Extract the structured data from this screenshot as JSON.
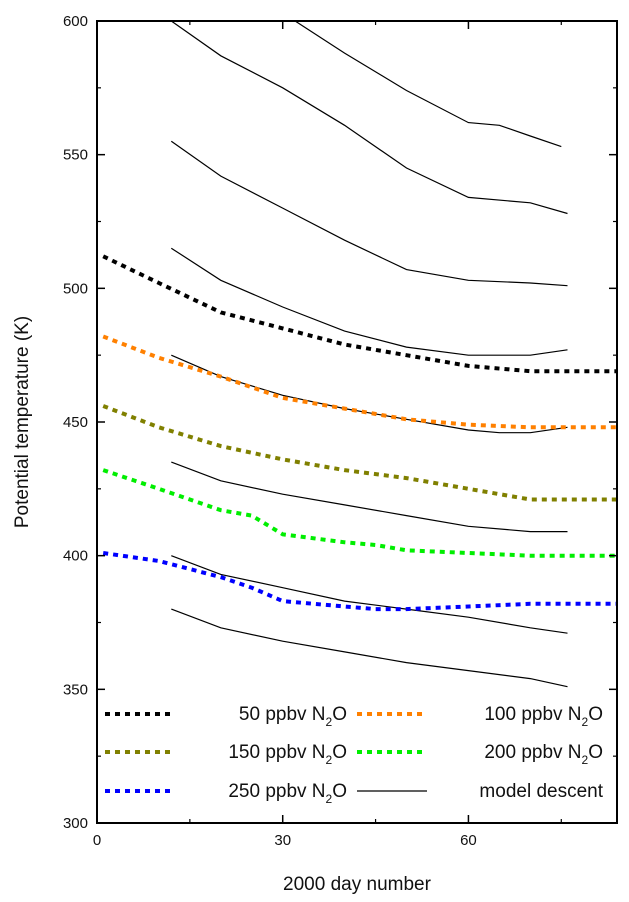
{
  "chart_data": {
    "type": "line",
    "title": "",
    "xlabel": "2000 day number",
    "ylabel": "Potential temperature (K)",
    "xlim": [
      0,
      84
    ],
    "ylim": [
      300,
      600
    ],
    "xticks": [
      0,
      30,
      60
    ],
    "yticks": [
      300,
      350,
      400,
      450,
      500,
      550,
      600
    ],
    "grid": false,
    "legend_position": "bottom",
    "series": [
      {
        "name": "50 ppbv N2O",
        "label_text": "50 ppbv N",
        "label_sub": "2",
        "label_tail": "O",
        "style": "dotted",
        "color": "#000000",
        "x": [
          1,
          10,
          20,
          30,
          40,
          50,
          60,
          70,
          84
        ],
        "y": [
          512,
          502,
          491,
          485,
          479,
          475,
          471,
          469,
          469
        ]
      },
      {
        "name": "100 ppbv N2O",
        "label_text": "100 ppbv N",
        "label_sub": "2",
        "label_tail": "O",
        "style": "dotted",
        "color": "#ff8000",
        "x": [
          1,
          10,
          20,
          30,
          40,
          50,
          60,
          70,
          84
        ],
        "y": [
          482,
          474,
          467,
          459,
          455,
          451,
          449,
          448,
          448
        ]
      },
      {
        "name": "150 ppbv N2O",
        "label_text": "150 ppbv N",
        "label_sub": "2",
        "label_tail": "O",
        "style": "dotted",
        "color": "#808000",
        "x": [
          1,
          10,
          20,
          30,
          40,
          50,
          60,
          70,
          84
        ],
        "y": [
          456,
          448,
          441,
          436,
          432,
          429,
          425,
          421,
          421
        ]
      },
      {
        "name": "200 ppbv N2O",
        "label_text": "200 ppbv N",
        "label_sub": "2",
        "label_tail": "O",
        "style": "dotted",
        "color": "#00ee00",
        "x": [
          1,
          10,
          20,
          25,
          30,
          40,
          45,
          50,
          60,
          70,
          84
        ],
        "y": [
          432,
          425,
          417,
          415,
          408,
          405,
          404,
          402,
          401,
          400,
          400
        ]
      },
      {
        "name": "250 ppbv N2O",
        "label_text": "250 ppbv N",
        "label_sub": "2",
        "label_tail": "O",
        "style": "dotted",
        "color": "#0000ff",
        "x": [
          1,
          10,
          20,
          25,
          30,
          40,
          45,
          50,
          60,
          70,
          84
        ],
        "y": [
          401,
          398,
          392,
          388,
          383,
          381,
          380,
          380,
          381,
          382,
          382
        ]
      },
      {
        "name": "model descent",
        "label_text": "model descent",
        "style": "solid",
        "color": "#000000"
      }
    ],
    "model_descent_lines": [
      {
        "x": [
          32,
          40,
          50,
          60,
          65,
          70,
          75
        ],
        "y": [
          600,
          588,
          574,
          562,
          561,
          557,
          553
        ]
      },
      {
        "x": [
          12,
          20,
          30,
          40,
          50,
          60,
          70,
          76
        ],
        "y": [
          600,
          587,
          575,
          561,
          545,
          534,
          532,
          528
        ]
      },
      {
        "x": [
          12,
          20,
          30,
          40,
          50,
          60,
          70,
          76
        ],
        "y": [
          555,
          542,
          530,
          518,
          507,
          503,
          502,
          501
        ]
      },
      {
        "x": [
          12,
          20,
          30,
          40,
          50,
          60,
          70,
          76
        ],
        "y": [
          515,
          503,
          493,
          484,
          478,
          475,
          475,
          477
        ]
      },
      {
        "x": [
          12,
          20,
          30,
          40,
          50,
          60,
          65,
          70,
          76
        ],
        "y": [
          475,
          467,
          460,
          455,
          451,
          447,
          446,
          446,
          448
        ]
      },
      {
        "x": [
          12,
          20,
          30,
          40,
          50,
          60,
          70,
          76
        ],
        "y": [
          435,
          428,
          423,
          419,
          415,
          411,
          409,
          409
        ]
      },
      {
        "x": [
          12,
          20,
          30,
          40,
          50,
          60,
          70,
          76
        ],
        "y": [
          400,
          393,
          388,
          383,
          380,
          377,
          373,
          371
        ]
      },
      {
        "x": [
          12,
          20,
          30,
          40,
          50,
          60,
          70,
          76
        ],
        "y": [
          380,
          373,
          368,
          364,
          360,
          357,
          354,
          351
        ]
      }
    ]
  }
}
